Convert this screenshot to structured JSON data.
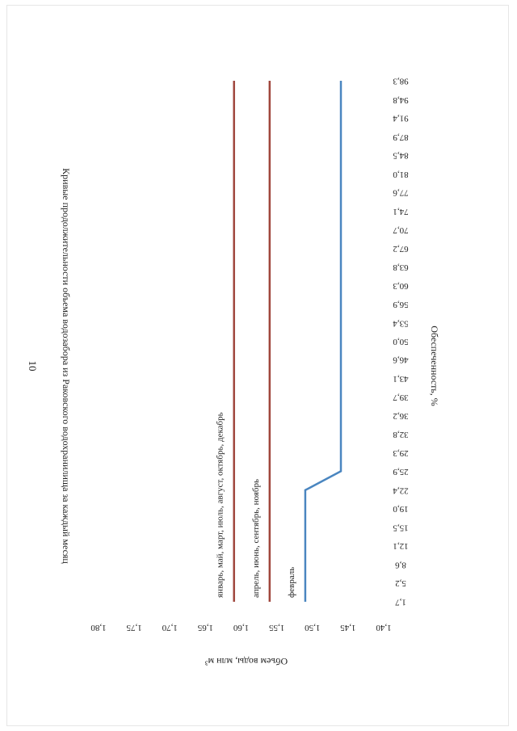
{
  "page": {
    "page_number": "10"
  },
  "chart_data": {
    "type": "line",
    "title": "Кривые продолжительности объема водозабора из Раковского водохранилища за каждый месяц",
    "xlabel": "Обеспеченность, %",
    "ylabel": "Объем воды, млн м³",
    "x_ticks": [
      "1,7",
      "5,2",
      "8,6",
      "12,1",
      "15,5",
      "19,0",
      "22,4",
      "25,9",
      "29,3",
      "32,8",
      "36,2",
      "39,7",
      "43,1",
      "46,6",
      "50,0",
      "53,4",
      "56,9",
      "60,3",
      "63,8",
      "67,2",
      "70,7",
      "74,1",
      "77,6",
      "81,0",
      "84,5",
      "87,9",
      "91,4",
      "94,8",
      "98,3"
    ],
    "y_ticks": [
      "1,40",
      "1,45",
      "1,50",
      "1,55",
      "1,60",
      "1,65",
      "1,70",
      "1,75",
      "1,80"
    ],
    "ylim": [
      1.4,
      1.8
    ],
    "grid": false,
    "legend": "none",
    "series": [
      {
        "name": "январь, май, март, июль, август, октябрь, декабрь",
        "color": "#a0463c",
        "x": [
          1.7,
          98.3
        ],
        "y": [
          1.61,
          1.61
        ]
      },
      {
        "name": "апрель, июнь, сентябрь, ноябрь",
        "color": "#a0463c",
        "x": [
          1.7,
          98.3
        ],
        "y": [
          1.56,
          1.56
        ]
      },
      {
        "name": "февраль",
        "color": "#4a86c0",
        "x": [
          1.7,
          22.4,
          25.9,
          98.3
        ],
        "y": [
          1.51,
          1.51,
          1.46,
          1.46
        ]
      }
    ]
  }
}
